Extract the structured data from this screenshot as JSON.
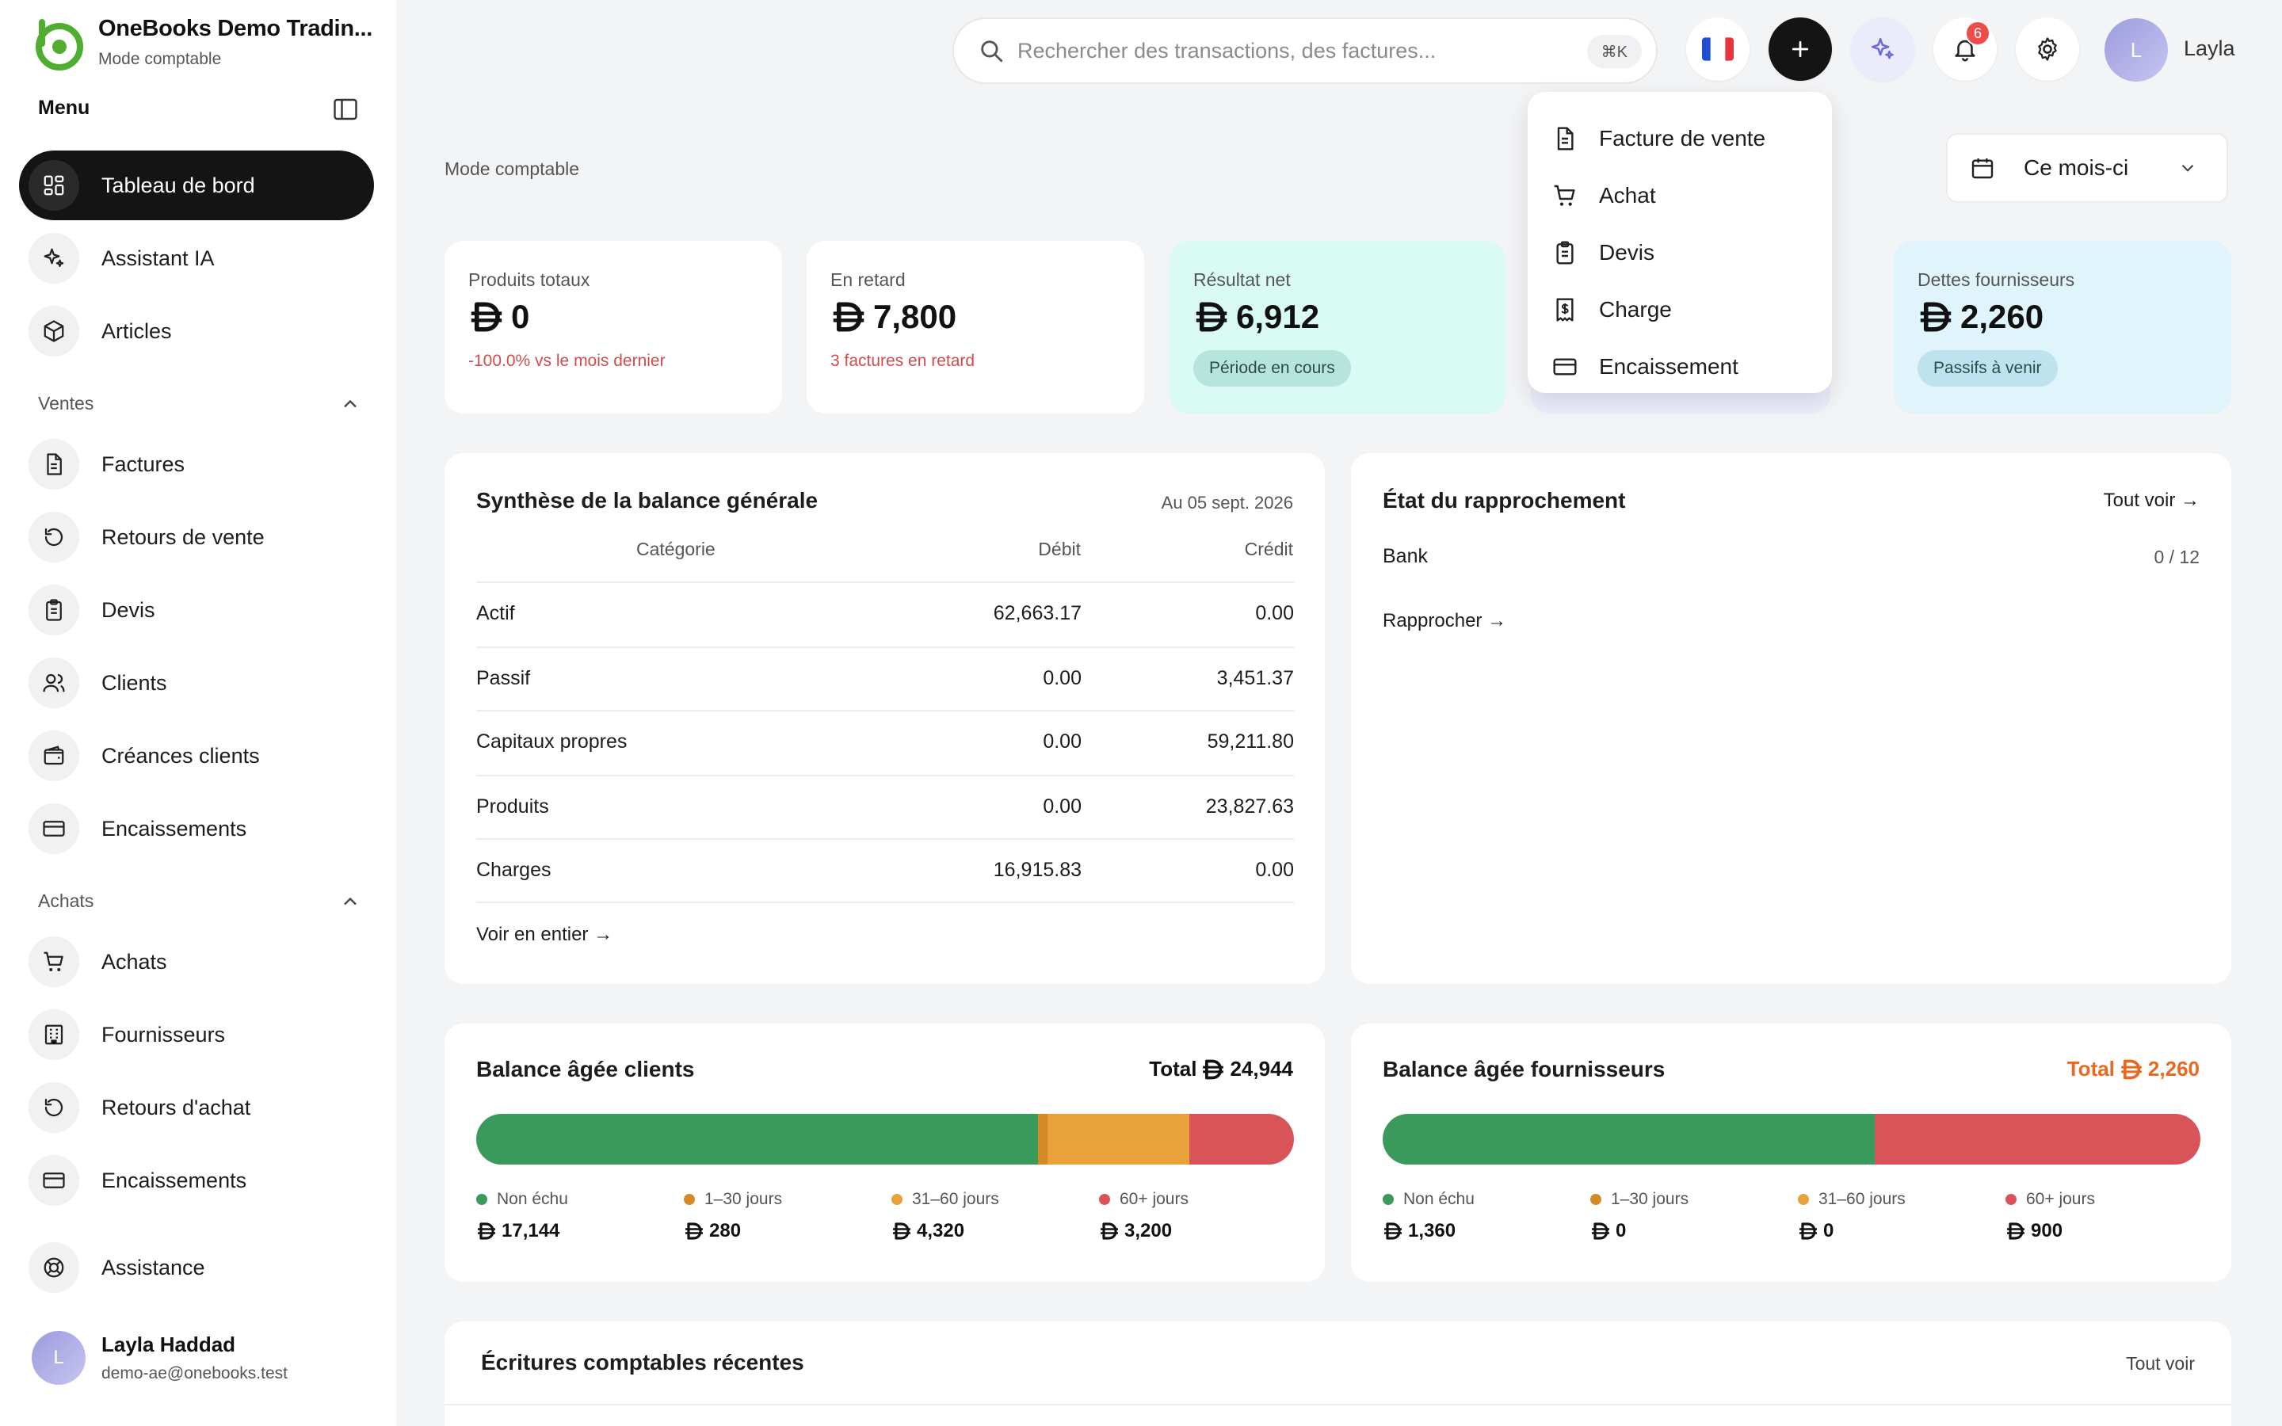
{
  "brand": {
    "name": "OneBooks Demo Tradin...",
    "subtitle": "Mode comptable"
  },
  "sidebar": {
    "menu_title": "Menu",
    "top_items": [
      {
        "label": "Tableau de bord",
        "icon": "dashboard-icon",
        "active": true
      },
      {
        "label": "Assistant IA",
        "icon": "sparkles-icon"
      },
      {
        "label": "Articles",
        "icon": "box-icon"
      }
    ],
    "sales": {
      "title": "Ventes",
      "items": [
        {
          "label": "Factures",
          "icon": "document-icon"
        },
        {
          "label": "Retours de vente",
          "icon": "rotate-icon"
        },
        {
          "label": "Devis",
          "icon": "clipboard-icon"
        },
        {
          "label": "Clients",
          "icon": "users-icon"
        },
        {
          "label": "Créances clients",
          "icon": "wallet-icon"
        },
        {
          "label": "Encaissements",
          "icon": "card-icon"
        }
      ]
    },
    "purchases": {
      "title": "Achats",
      "items": [
        {
          "label": "Achats",
          "icon": "cart-icon"
        },
        {
          "label": "Fournisseurs",
          "icon": "building-icon"
        },
        {
          "label": "Retours d'achat",
          "icon": "rotate-icon"
        },
        {
          "label": "Encaissements",
          "icon": "card-icon"
        }
      ]
    },
    "support": {
      "label": "Assistance",
      "icon": "lifebuoy-icon"
    },
    "user": {
      "initial": "L",
      "name": "Layla Haddad",
      "email": "demo-ae@onebooks.test"
    }
  },
  "header": {
    "search_placeholder": "Rechercher des transactions, des factures...",
    "shortcut": "⌘K",
    "notifications_count": "6",
    "user_initial": "L",
    "user_name": "Layla"
  },
  "dropdown": {
    "items": [
      {
        "label": "Facture de vente",
        "icon": "document-icon"
      },
      {
        "label": "Achat",
        "icon": "cart-icon"
      },
      {
        "label": "Devis",
        "icon": "clipboard-icon"
      },
      {
        "label": "Charge",
        "icon": "receipt-icon"
      },
      {
        "label": "Encaissement",
        "icon": "card-icon"
      }
    ]
  },
  "main": {
    "breadcrumb": "Mode comptable",
    "period": "Ce mois-ci",
    "kpis": [
      {
        "label": "Produits totaux",
        "value": "0",
        "sub": "-100.0% vs le mois dernier"
      },
      {
        "label": "En retard",
        "value": "7,800",
        "sub": "3 factures en retard"
      },
      {
        "label": "Résultat net",
        "value": "6,912",
        "pill": "Période en cours"
      },
      {
        "label": "Dettes fournisseurs",
        "value": "2,260",
        "pill": "Passifs à venir"
      }
    ],
    "trial_balance": {
      "title": "Synthèse de la balance générale",
      "date": "Au 05 sept. 2026",
      "columns": [
        "Catégorie",
        "Débit",
        "Crédit"
      ],
      "rows": [
        {
          "category": "Actif",
          "debit": "62,663.17",
          "credit": "0.00"
        },
        {
          "category": "Passif",
          "debit": "0.00",
          "credit": "3,451.37"
        },
        {
          "category": "Capitaux propres",
          "debit": "0.00",
          "credit": "59,211.80"
        },
        {
          "category": "Produits",
          "debit": "0.00",
          "credit": "23,827.63"
        },
        {
          "category": "Charges",
          "debit": "16,915.83",
          "credit": "0.00"
        }
      ],
      "view_all": "Voir en entier →"
    },
    "reconciliation": {
      "title": "État du rapprochement",
      "view_all": "Tout voir →",
      "account": "Bank",
      "progress": "0 / 12",
      "action": "Rapprocher →"
    },
    "ar_aging": {
      "title": "Balance âgée clients",
      "total_label": "Total",
      "total": "24,944",
      "buckets": [
        {
          "label": "Non échu",
          "value": "17,144",
          "amount": 17144,
          "color": "#3a9a5b"
        },
        {
          "label": "1–30 jours",
          "value": "280",
          "amount": 280,
          "color": "#d38a27"
        },
        {
          "label": "31–60 jours",
          "value": "4,320",
          "amount": 4320,
          "color": "#e8a13b"
        },
        {
          "label": "60+ jours",
          "value": "3,200",
          "amount": 3200,
          "color": "#d95459"
        }
      ]
    },
    "ap_aging": {
      "title": "Balance âgée fournisseurs",
      "total_label": "Total",
      "total": "2,260",
      "buckets": [
        {
          "label": "Non échu",
          "value": "1,360",
          "amount": 1360,
          "color": "#3a9a5b"
        },
        {
          "label": "1–30 jours",
          "value": "0",
          "amount": 0,
          "color": "#d38a27"
        },
        {
          "label": "31–60 jours",
          "value": "0",
          "amount": 0,
          "color": "#e8a13b"
        },
        {
          "label": "60+ jours",
          "value": "900",
          "amount": 900,
          "color": "#d95459"
        }
      ]
    },
    "journal": {
      "title": "Écritures comptables récentes",
      "view_all": "Tout voir"
    }
  },
  "colors": {
    "accent_green": "#3a9a5b",
    "danger": "#d24c4c",
    "orange_total": "#e8691f",
    "mint_card": "#d9fbf4",
    "sky_card": "#dff4fb"
  }
}
